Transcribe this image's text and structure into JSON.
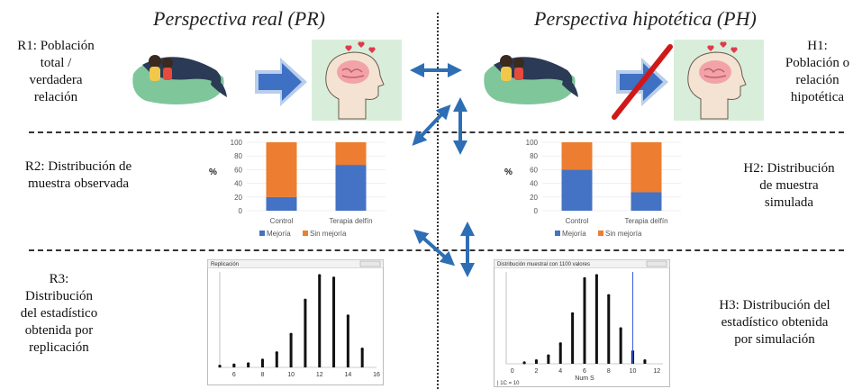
{
  "titles": {
    "real": "Perspectiva real (PR)",
    "hypo": "Perspectiva hipotética (PH)"
  },
  "labels": {
    "r1": [
      "R1: Población",
      "total /",
      "verdadera",
      "relación"
    ],
    "h1": [
      "H1:",
      "Población o",
      "relación",
      "hipotética"
    ],
    "r2": [
      "R2: Distribución de",
      "muestra observada"
    ],
    "h2": [
      "H2: Distribución",
      "de muestra",
      "simulada"
    ],
    "r3": [
      "R3:",
      "Distribución",
      "del estadístico",
      "obtenida por",
      "replicación"
    ],
    "h3": [
      "H3: Distribución del",
      "estadístico obtenida",
      "por simulación"
    ]
  },
  "colors": {
    "blue": "#4472C4",
    "orange": "#ED7D31",
    "arrow": "#2E6EB5",
    "cross": "#D01818",
    "water": "#7FC69B"
  },
  "chart_data": [
    {
      "type": "bar",
      "stacked": true,
      "categories": [
        "Control",
        "Terapia delfín"
      ],
      "series": [
        {
          "name": "Mejoría",
          "values": [
            20,
            67
          ]
        },
        {
          "name": "Sin mejoría",
          "values": [
            80,
            33
          ]
        }
      ],
      "ylabel": "%",
      "ylim": [
        0,
        100
      ],
      "yticks": [
        "0",
        "20",
        "40",
        "60",
        "80",
        "100"
      ],
      "legend": "bottom"
    },
    {
      "type": "bar",
      "stacked": true,
      "categories": [
        "Control",
        "Terapia delfín"
      ],
      "series": [
        {
          "name": "Mejoría",
          "values": [
            60,
            27
          ]
        },
        {
          "name": "Sin mejoría",
          "values": [
            40,
            73
          ]
        }
      ],
      "ylabel": "%",
      "ylim": [
        0,
        100
      ],
      "yticks": [
        "0",
        "20",
        "40",
        "60",
        "80",
        "100"
      ],
      "legend": "bottom"
    },
    {
      "type": "bar",
      "title": "Replicación",
      "x": [
        5,
        6,
        7,
        8,
        9,
        10,
        11,
        12,
        13,
        14,
        15
      ],
      "values": [
        1,
        2,
        3,
        6,
        12,
        27,
        55,
        75,
        73,
        42,
        15
      ],
      "xticks": [
        "6",
        "8",
        "10",
        "12",
        "14",
        "16"
      ],
      "xlim": [
        5,
        16
      ]
    },
    {
      "type": "bar",
      "title": "Distribución muestral con 1100 valores",
      "x": [
        1,
        2,
        3,
        4,
        5,
        6,
        7,
        8,
        9,
        10,
        11
      ],
      "values": [
        1,
        3,
        8,
        20,
        50,
        85,
        88,
        68,
        35,
        12,
        3
      ],
      "xticks": [
        "0",
        "2",
        "4",
        "6",
        "8",
        "10",
        "12"
      ],
      "xlim": [
        -0.5,
        12.5
      ],
      "marker": 10,
      "xlabel": "Num S",
      "footer": "| 1C = 10"
    }
  ]
}
